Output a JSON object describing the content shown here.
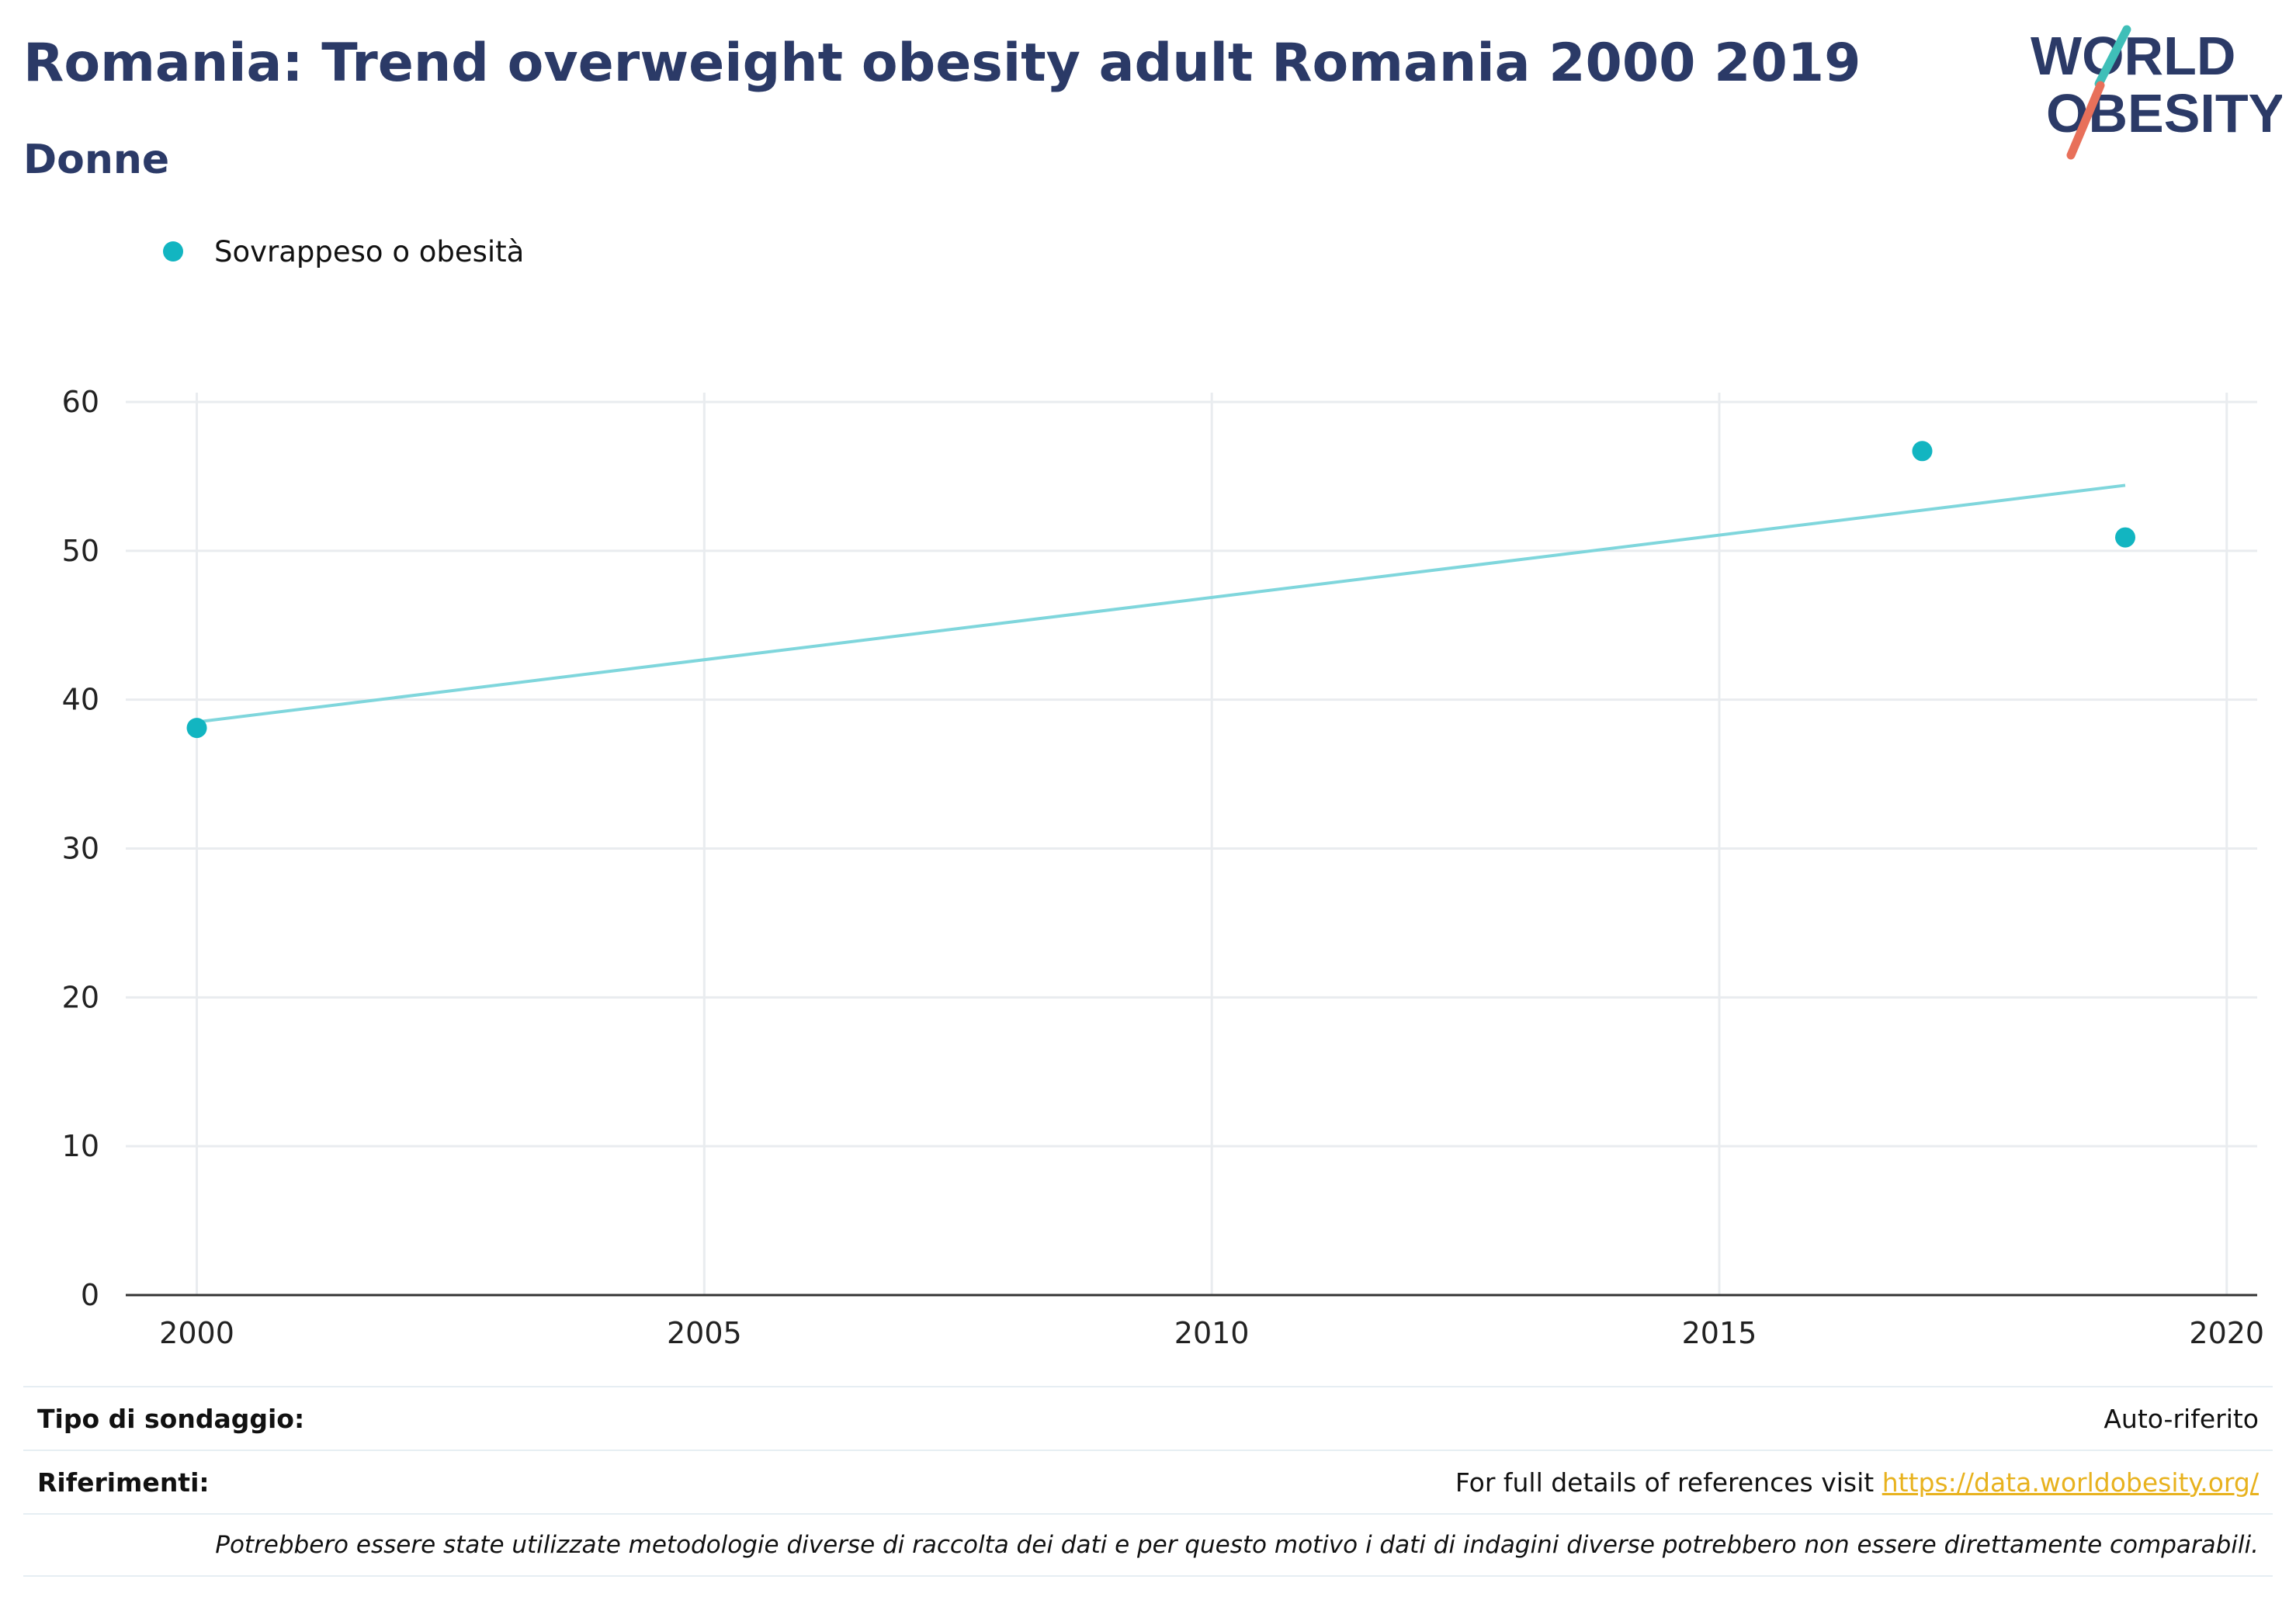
{
  "header": {
    "title": "Romania: Trend overweight obesity adult Romania 2000 2019",
    "subtitle": "Donne"
  },
  "logo": {
    "line1": "WORLD",
    "line2": "OBESITY",
    "colors": {
      "text": "#2b3a67",
      "slash_top": "#3fbfb8",
      "slash_bottom": "#e8705a"
    }
  },
  "legend": {
    "label": "Sovrappeso o obesità",
    "color": "#12b5c1"
  },
  "chart_data": {
    "type": "scatter",
    "title": "Romania: Trend overweight obesity adult Romania 2000 2019",
    "subtitle": "Donne",
    "xlabel": "",
    "ylabel": "",
    "xlim": [
      1999.3,
      2020.3
    ],
    "ylim": [
      0,
      60
    ],
    "xticks": [
      2000,
      2005,
      2010,
      2015,
      2020
    ],
    "yticks": [
      0,
      10,
      20,
      30,
      40,
      50,
      60
    ],
    "grid": true,
    "legend_position": "top-left",
    "series": [
      {
        "name": "Sovrappeso o obesità",
        "color": "#12b5c1",
        "points": [
          {
            "x": 2000,
            "y": 38.1
          },
          {
            "x": 2017,
            "y": 56.7
          },
          {
            "x": 2019,
            "y": 50.9
          }
        ]
      }
    ],
    "trendline": {
      "color": "#7fd6dc",
      "points": [
        {
          "x": 2000,
          "y": 38.5
        },
        {
          "x": 2019,
          "y": 54.4
        }
      ]
    }
  },
  "footer": {
    "survey_type_label": "Tipo di sondaggio:",
    "survey_type_value": "Auto-riferito",
    "references_label": "Riferimenti:",
    "references_text": "For full details of references visit ",
    "references_link": "https://data.worldobesity.org/",
    "note": "Potrebbero essere state utilizzate metodologie diverse di raccolta dei dati e per questo motivo i dati di indagini diverse potrebbero non essere direttamente comparabili."
  }
}
